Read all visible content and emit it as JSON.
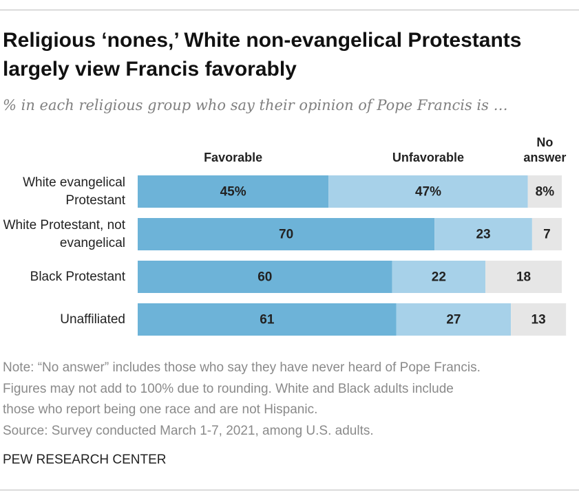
{
  "chart_data": {
    "type": "stacked-bar",
    "title": "Religious ‘nones,’ White non-evangelical Protestants largely view Francis favorably",
    "subtitle": "% in each religious group who say their opinion of Pope Francis is …",
    "categories": [
      "White evangelical Protestant",
      "White Protestant, not evangelical",
      "Black Protestant",
      "Unaffiliated"
    ],
    "series": [
      {
        "name": "Favorable",
        "color": "#6db3d8",
        "values": [
          45,
          70,
          60,
          61
        ],
        "value_labels": [
          "45%",
          "70",
          "60",
          "61"
        ]
      },
      {
        "name": "Unfavorable",
        "color": "#a7d1e9",
        "values": [
          47,
          23,
          22,
          27
        ],
        "value_labels": [
          "47%",
          "23",
          "22",
          "27"
        ]
      },
      {
        "name": "No answer",
        "color": "#e6e6e6",
        "values": [
          8,
          7,
          18,
          13
        ],
        "value_labels": [
          "8%",
          "7",
          "18",
          "13"
        ]
      }
    ],
    "notes": [
      "Note: “No answer” includes those who say they have never heard of Pope Francis.",
      "Figures may not add to 100% due to rounding. White and Black adults include",
      "those who report being one race and are not Hispanic.",
      "Source: Survey conducted March 1-7, 2021, among U.S. adults."
    ],
    "credit": "PEW RESEARCH CENTER"
  }
}
